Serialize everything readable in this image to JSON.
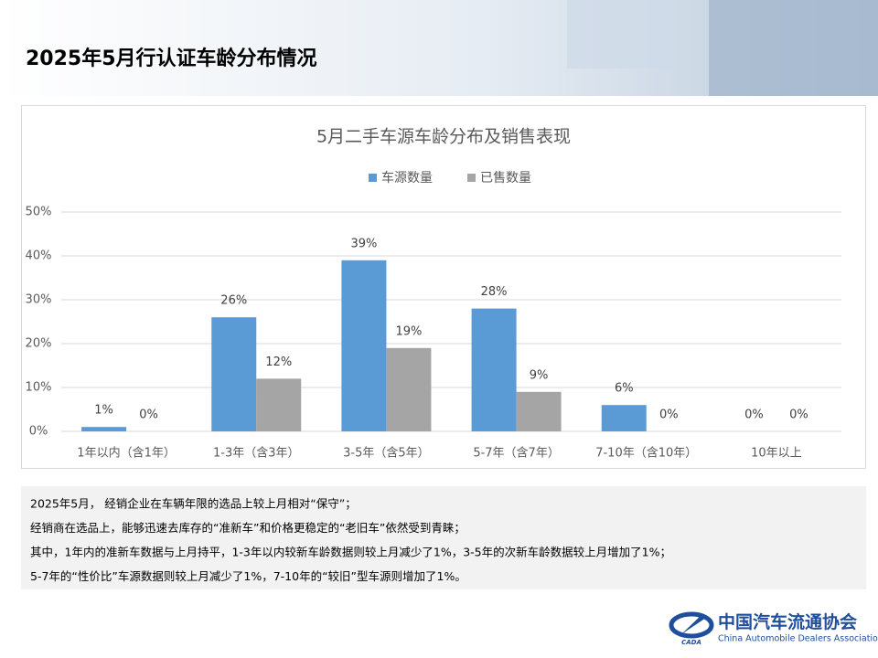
{
  "header": {
    "title": "2025年5月行认证车龄分布情况"
  },
  "chart_data": {
    "type": "bar",
    "title": "5月二手车源车龄分布及销售表现",
    "categories": [
      "1年以内（含1年）",
      "1-3年（含3年）",
      "3-5年（含5年）",
      "5-7年（含7年）",
      "7-10年（含10年）",
      "10年以上"
    ],
    "series": [
      {
        "name": "车源数量",
        "color": "#5b9bd5",
        "values": [
          1,
          26,
          39,
          28,
          6,
          0
        ],
        "value_labels": [
          "1%",
          "26%",
          "39%",
          "28%",
          "6%",
          "0%"
        ]
      },
      {
        "name": "已售数量",
        "color": "#a5a5a5",
        "values": [
          0,
          12,
          19,
          9,
          0,
          0
        ],
        "value_labels": [
          "0%",
          "12%",
          "19%",
          "9%",
          "0%",
          "0%"
        ]
      }
    ],
    "ylim": [
      0,
      50
    ],
    "yticks": [
      {
        "value": 0,
        "label": "0%"
      },
      {
        "value": 10,
        "label": "10%"
      },
      {
        "value": 20,
        "label": "20%"
      },
      {
        "value": 30,
        "label": "30%"
      },
      {
        "value": 40,
        "label": "40%"
      },
      {
        "value": 50,
        "label": "50%"
      }
    ],
    "grid": true,
    "legend": "top"
  },
  "notes": [
    "2025年5月， 经销企业在车辆年限的选品上较上月相对“保守”；",
    "经销商在选品上，能够迅速去库存的“准新车”和价格更稳定的“老旧车”依然受到青睐；",
    "其中，1年内的准新车数据与上月持平，1-3年以内较新车龄数据则较上月减少了1%，3-5年的次新车龄数据较上月增加了1%；",
    "5-7年的“性价比”车源数据则较上月减少了1%，7-10年的“较旧”型车源则增加了1%。"
  ],
  "logo": {
    "name": "中国汽车流通协会",
    "english": "China Automobile Dealers Association",
    "abbr": "CADA"
  }
}
